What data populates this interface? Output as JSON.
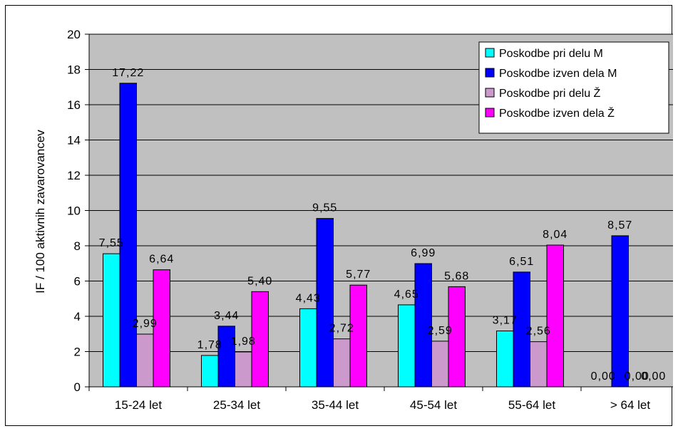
{
  "chart_data": {
    "type": "bar",
    "title": "",
    "xlabel": "",
    "ylabel": "IF / 100 aktivnih zavarovancev",
    "ylim": [
      0,
      20
    ],
    "y_ticks": [
      "0",
      "2",
      "4",
      "6",
      "8",
      "10",
      "12",
      "14",
      "16",
      "18",
      "20"
    ],
    "categories": [
      "15-24 let",
      "25-34 let",
      "35-44 let",
      "45-54 let",
      "55-64 let",
      "> 64 let"
    ],
    "grid": "horizontal",
    "legend_position": "top-right",
    "plot_background": "#c0c0c0",
    "series": [
      {
        "name": "Poskodbe pri delu M",
        "color": "#00ffff",
        "values": [
          7.55,
          1.78,
          4.43,
          4.65,
          3.17,
          0.0
        ],
        "labels": [
          "7,55",
          "1,78",
          "4,43",
          "4,65",
          "3,17",
          "0,00"
        ]
      },
      {
        "name": "Poskodbe izven dela M",
        "color": "#0000ff",
        "values": [
          17.22,
          3.44,
          9.55,
          6.99,
          6.51,
          8.57
        ],
        "labels": [
          "17,22",
          "3,44",
          "9,55",
          "6,99",
          "6,51",
          "8,57"
        ]
      },
      {
        "name": "Poskodbe pri delu Ž",
        "color": "#cc99cc",
        "values": [
          2.99,
          1.98,
          2.72,
          2.59,
          2.56,
          0.0
        ],
        "labels": [
          "2,99",
          "1,98",
          "2,72",
          "2,59",
          "2,56",
          "0,00"
        ]
      },
      {
        "name": "Poskodbe izven dela Ž",
        "color": "#ff00ff",
        "values": [
          6.64,
          5.4,
          5.77,
          5.68,
          8.04,
          0.0
        ],
        "labels": [
          "6,64",
          "5,40",
          "5,77",
          "5,68",
          "8,04",
          "0,00"
        ]
      }
    ]
  }
}
